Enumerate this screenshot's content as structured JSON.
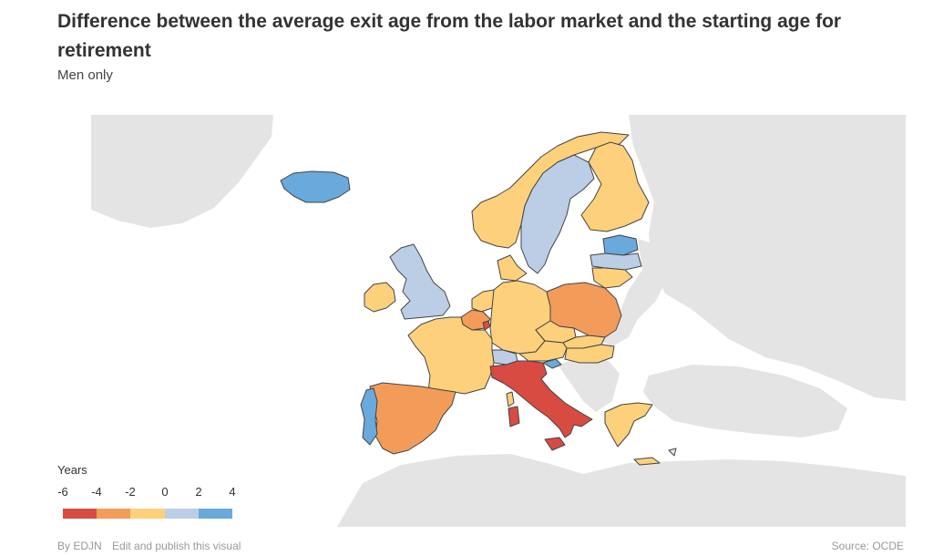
{
  "header": {
    "title": "Difference between the average exit age from the labor market and the starting age for retirement",
    "subtitle": "Men only"
  },
  "legend": {
    "title": "Years",
    "ticks": [
      "-6",
      "-4",
      "-2",
      "0",
      "2",
      "4"
    ],
    "colors": [
      "#d84b42",
      "#f39c5a",
      "#fdd07c",
      "#bccde6",
      "#6aa9db"
    ]
  },
  "colors": {
    "land_background": "#e4e4e4",
    "border": "#444444"
  },
  "regions": [
    {
      "name": "Iceland",
      "bin": "2 to 4"
    },
    {
      "name": "Ireland",
      "bin": "-2 to 0"
    },
    {
      "name": "United Kingdom",
      "bin": "0 to 2"
    },
    {
      "name": "Norway",
      "bin": "-2 to 0"
    },
    {
      "name": "Sweden",
      "bin": "0 to 2"
    },
    {
      "name": "Finland",
      "bin": "-2 to 0"
    },
    {
      "name": "Estonia",
      "bin": "2 to 4"
    },
    {
      "name": "Latvia",
      "bin": "0 to 2"
    },
    {
      "name": "Lithuania",
      "bin": "-2 to 0"
    },
    {
      "name": "Denmark",
      "bin": "-2 to 0"
    },
    {
      "name": "Netherlands",
      "bin": "-2 to 0"
    },
    {
      "name": "Belgium",
      "bin": "-4 to -2"
    },
    {
      "name": "Luxembourg",
      "bin": "-6 to -4"
    },
    {
      "name": "Germany",
      "bin": "-2 to 0"
    },
    {
      "name": "Poland",
      "bin": "-4 to -2"
    },
    {
      "name": "Czech Republic",
      "bin": "-2 to 0"
    },
    {
      "name": "Slovakia",
      "bin": "-2 to 0"
    },
    {
      "name": "Austria",
      "bin": "-2 to 0"
    },
    {
      "name": "Hungary",
      "bin": "-2 to 0"
    },
    {
      "name": "Slovenia",
      "bin": "2 to 4"
    },
    {
      "name": "Switzerland",
      "bin": "0 to 2"
    },
    {
      "name": "France",
      "bin": "-2 to 0"
    },
    {
      "name": "Spain",
      "bin": "-4 to -2"
    },
    {
      "name": "Portugal",
      "bin": "2 to 4"
    },
    {
      "name": "Italy",
      "bin": "-6 to -4"
    },
    {
      "name": "Greece",
      "bin": "-2 to 0"
    }
  ],
  "footer": {
    "credit": "By EDJN",
    "link": "Edit and publish this visual",
    "source": "Source: OCDE"
  }
}
